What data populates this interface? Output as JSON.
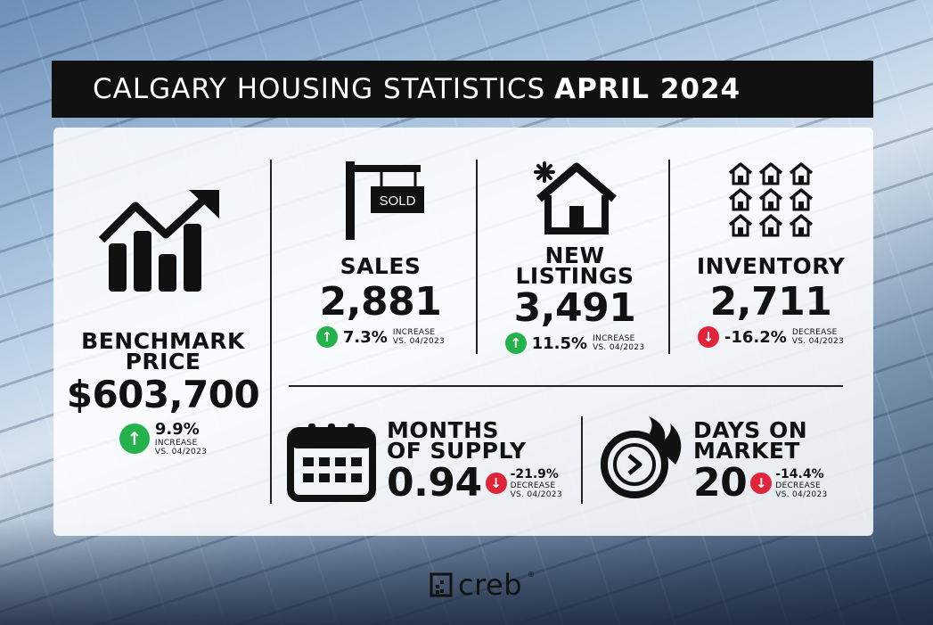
{
  "title": {
    "main": "CALGARY HOUSING STATISTICS",
    "period": "APRIL 2024"
  },
  "benchmark": {
    "label_line1": "BENCHMARK",
    "label_line2": "PRICE",
    "value": "$603,700",
    "change": "9.9%",
    "direction_label": "INCREASE",
    "comparison": "VS. 04/2023",
    "direction": "up"
  },
  "sales": {
    "sign_text": "SOLD",
    "label": "SALES",
    "value": "2,881",
    "change": "7.3%",
    "direction_label": "INCREASE",
    "comparison": "VS. 04/2023",
    "direction": "up"
  },
  "new_listings": {
    "label_line1": "NEW",
    "label_line2": "LISTINGS",
    "value": "3,491",
    "change": "11.5%",
    "direction_label": "INCREASE",
    "comparison": "VS. 04/2023",
    "direction": "up"
  },
  "inventory": {
    "label": "INVENTORY",
    "value": "2,711",
    "change": "-16.2%",
    "direction_label": "DECREASE",
    "comparison": "VS. 04/2023",
    "direction": "down"
  },
  "months_of_supply": {
    "label_line1": "MONTHS",
    "label_line2": "OF SUPPLY",
    "value": "0.94",
    "change": "-21.9%",
    "direction_label": "DECREASE",
    "comparison": "VS. 04/2023",
    "direction": "down"
  },
  "days_on_market": {
    "label_line1": "DAYS ON",
    "label_line2": "MARKET",
    "value": "20",
    "change": "-14.4%",
    "direction_label": "DECREASE",
    "comparison": "VS. 04/2023",
    "direction": "down"
  },
  "logo": {
    "text": "creb",
    "registered": "®"
  },
  "icons": {
    "chart": "bar-chart-trend-up-icon",
    "sold": "sold-sign-icon",
    "house": "house-sparkle-icon",
    "inventory": "houses-grid-icon",
    "calendar": "calendar-icon",
    "clock": "clock-fire-icon",
    "arrow_up": "arrow-up-icon",
    "arrow_down": "arrow-down-icon"
  },
  "colors": {
    "increase": "#24b24c",
    "decrease": "#e0243a",
    "title_bg": "#111111"
  }
}
